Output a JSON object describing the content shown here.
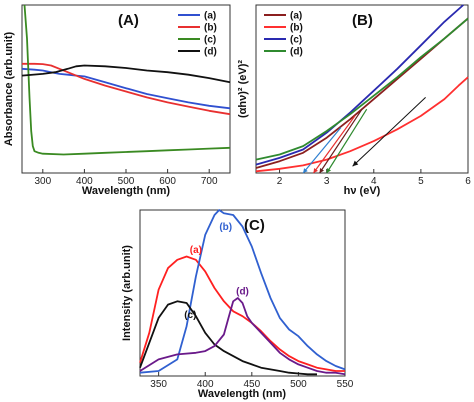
{
  "chart_data": [
    {
      "panel": "(A)",
      "type": "line",
      "xlabel": "Wavelength (nm)",
      "ylabel": "Absorbance (arb.unit)",
      "xlim": [
        250,
        750
      ],
      "ylim": [
        0,
        1
      ],
      "xticks": [
        300,
        400,
        500,
        600,
        700
      ],
      "legend_position": "top-right",
      "series": [
        {
          "name": "(a)",
          "color": "#3050d0",
          "x": [
            250,
            280,
            300,
            320,
            340,
            360,
            380,
            400,
            450,
            500,
            550,
            600,
            650,
            700,
            750
          ],
          "y": [
            0.62,
            0.615,
            0.61,
            0.6,
            0.59,
            0.585,
            0.58,
            0.575,
            0.54,
            0.505,
            0.47,
            0.445,
            0.42,
            0.4,
            0.385
          ]
        },
        {
          "name": "(b)",
          "color": "#e83030",
          "x": [
            250,
            280,
            300,
            320,
            340,
            360,
            380,
            400,
            450,
            500,
            550,
            600,
            650,
            700,
            750
          ],
          "y": [
            0.65,
            0.65,
            0.648,
            0.64,
            0.62,
            0.6,
            0.58,
            0.56,
            0.52,
            0.485,
            0.45,
            0.42,
            0.395,
            0.37,
            0.35
          ]
        },
        {
          "name": "(c)",
          "color": "#3a8a22",
          "x": [
            256,
            262,
            268,
            272,
            276,
            280,
            290,
            300,
            350,
            400,
            450,
            500,
            550,
            600,
            650,
            700,
            750
          ],
          "y": [
            1.0,
            0.8,
            0.45,
            0.25,
            0.16,
            0.13,
            0.12,
            0.115,
            0.11,
            0.115,
            0.12,
            0.125,
            0.13,
            0.135,
            0.14,
            0.145,
            0.15
          ]
        },
        {
          "name": "(d)",
          "color": "#111111",
          "x": [
            250,
            300,
            330,
            360,
            380,
            400,
            450,
            500,
            550,
            600,
            650,
            700,
            750
          ],
          "y": [
            0.58,
            0.59,
            0.6,
            0.62,
            0.635,
            0.64,
            0.635,
            0.625,
            0.61,
            0.6,
            0.585,
            0.565,
            0.54
          ]
        }
      ]
    },
    {
      "panel": "(B)",
      "type": "line",
      "xlabel": "hν (eV)",
      "ylabel": "(αhν)² (eV)²",
      "xlim": [
        1.5,
        6
      ],
      "ylim": [
        0,
        1
      ],
      "xticks": [
        2,
        3,
        4,
        5,
        6
      ],
      "legend_position": "top-left",
      "series": [
        {
          "name": "(a)",
          "color": "#8b1f1f",
          "x": [
            1.5,
            2,
            2.5,
            3,
            3.5,
            4,
            4.5,
            5,
            5.5,
            6
          ],
          "y": [
            0.03,
            0.07,
            0.12,
            0.21,
            0.32,
            0.44,
            0.56,
            0.68,
            0.8,
            0.92
          ]
        },
        {
          "name": "(b)",
          "color": "#ff3030",
          "x": [
            1.5,
            2,
            2.5,
            3,
            3.5,
            4,
            4.5,
            5,
            5.5,
            5.8,
            6
          ],
          "y": [
            0.01,
            0.025,
            0.045,
            0.08,
            0.13,
            0.19,
            0.26,
            0.34,
            0.44,
            0.52,
            0.57
          ]
        },
        {
          "name": "(c)",
          "color": "#2a2ab0",
          "x": [
            1.5,
            2,
            2.5,
            3,
            3.5,
            4,
            4.5,
            5,
            5.5,
            5.9
          ],
          "y": [
            0.05,
            0.09,
            0.14,
            0.24,
            0.36,
            0.49,
            0.62,
            0.76,
            0.9,
            1.0
          ]
        },
        {
          "name": "(d)",
          "color": "#2f8a2f",
          "x": [
            1.5,
            2,
            2.5,
            3,
            3.5,
            4,
            4.5,
            5,
            5.5,
            6
          ],
          "y": [
            0.08,
            0.11,
            0.16,
            0.25,
            0.35,
            0.46,
            0.57,
            0.69,
            0.8,
            0.92
          ]
        }
      ],
      "annotations": [
        {
          "type": "tangent",
          "color": "#2f80d0",
          "x": [
            2.5,
            3.3
          ],
          "y": [
            0,
            0.27
          ]
        },
        {
          "type": "tangent",
          "color": "#e83030",
          "x": [
            2.72,
            3.6
          ],
          "y": [
            0,
            0.34
          ]
        },
        {
          "type": "tangent",
          "color": "#6a1f1f",
          "x": [
            2.85,
            3.75
          ],
          "y": [
            0,
            0.38
          ]
        },
        {
          "type": "tangent",
          "color": "#2f8a2f",
          "x": [
            3.0,
            3.85
          ],
          "y": [
            0,
            0.38
          ]
        },
        {
          "type": "arrow",
          "color": "#111111",
          "x": [
            5.1,
            3.55
          ],
          "y": [
            0.45,
            0.04
          ]
        }
      ]
    },
    {
      "panel": "(C)",
      "type": "line",
      "xlabel": "Wavelength (nm)",
      "ylabel": "Intensity (arb.unit)",
      "xlim": [
        330,
        550
      ],
      "ylim": [
        0,
        1
      ],
      "xticks": [
        350,
        400,
        450,
        500,
        550
      ],
      "series": [
        {
          "name": "(a)",
          "color": "#ff2020",
          "x": [
            330,
            340,
            350,
            360,
            370,
            380,
            390,
            400,
            410,
            420,
            430,
            440,
            450,
            460,
            470,
            480,
            490,
            500,
            510,
            520,
            530,
            540,
            550
          ],
          "y": [
            0.08,
            0.26,
            0.52,
            0.65,
            0.7,
            0.72,
            0.7,
            0.63,
            0.53,
            0.45,
            0.39,
            0.36,
            0.32,
            0.27,
            0.21,
            0.16,
            0.12,
            0.09,
            0.07,
            0.05,
            0.04,
            0.03,
            0.03
          ]
        },
        {
          "name": "(b)",
          "color": "#3060d0",
          "x": [
            330,
            350,
            370,
            380,
            390,
            400,
            410,
            415,
            420,
            430,
            440,
            450,
            460,
            470,
            480,
            490,
            500,
            510,
            520,
            530,
            540,
            550
          ],
          "y": [
            0.02,
            0.03,
            0.1,
            0.3,
            0.6,
            0.85,
            0.97,
            1.0,
            0.98,
            0.97,
            0.9,
            0.78,
            0.62,
            0.47,
            0.35,
            0.28,
            0.24,
            0.18,
            0.13,
            0.09,
            0.06,
            0.04
          ]
        },
        {
          "name": "(c)",
          "color": "#111111",
          "x": [
            330,
            340,
            350,
            360,
            370,
            380,
            390,
            400,
            410,
            420,
            430,
            440,
            450,
            460,
            470,
            480,
            490,
            500,
            510,
            520
          ],
          "y": [
            0.05,
            0.2,
            0.35,
            0.43,
            0.45,
            0.44,
            0.36,
            0.26,
            0.19,
            0.15,
            0.12,
            0.09,
            0.07,
            0.05,
            0.04,
            0.03,
            0.02,
            0.015,
            0.01,
            0.01
          ]
        },
        {
          "name": "(d)",
          "color": "#6a1a8a",
          "x": [
            330,
            350,
            370,
            390,
            400,
            410,
            420,
            425,
            430,
            435,
            440,
            445,
            450,
            460,
            470,
            480,
            490,
            500,
            510,
            520,
            530,
            540,
            550
          ],
          "y": [
            0.03,
            0.1,
            0.13,
            0.14,
            0.15,
            0.18,
            0.25,
            0.35,
            0.45,
            0.47,
            0.44,
            0.36,
            0.32,
            0.26,
            0.2,
            0.14,
            0.1,
            0.07,
            0.05,
            0.03,
            0.02,
            0.02,
            0.01
          ]
        }
      ],
      "labels": [
        {
          "text": "(a)",
          "x": 390,
          "y": 0.74
        },
        {
          "text": "(b)",
          "x": 422,
          "y": 0.88
        },
        {
          "text": "(c)",
          "x": 384,
          "y": 0.35
        },
        {
          "text": "(d)",
          "x": 440,
          "y": 0.49
        }
      ]
    }
  ]
}
